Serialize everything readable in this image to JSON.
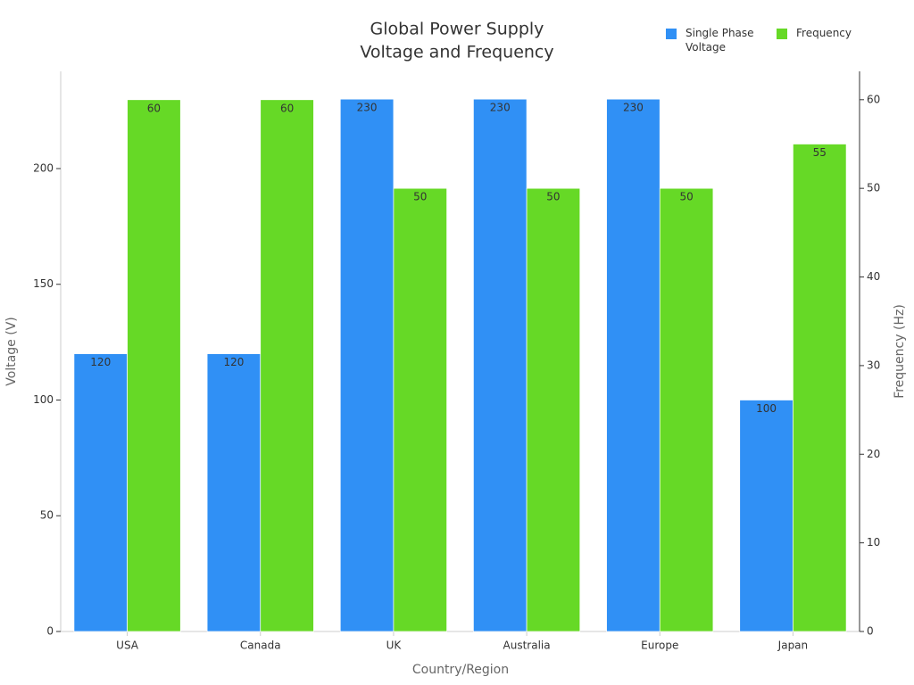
{
  "chart_data": {
    "type": "bar",
    "title": [
      "Global Power Supply",
      "Voltage and Frequency"
    ],
    "x_label": "Country/Region",
    "y_label": "Voltage (V)",
    "y2_label": "Frequency (Hz)",
    "categories": [
      "USA",
      "Canada",
      "UK",
      "Australia",
      "Europe",
      "Japan"
    ],
    "series": [
      {
        "name": "Single Phase Voltage",
        "color": "#3090f5",
        "values": [
          120,
          120,
          230,
          230,
          230,
          100
        ]
      },
      {
        "name": "Frequency",
        "color": "#66d926",
        "axis": "y2",
        "values": [
          60,
          60,
          50,
          50,
          50,
          55
        ]
      }
    ],
    "ylim": [
      0,
      242
    ],
    "yticks": [
      0,
      50,
      100,
      150,
      200
    ],
    "y2lim": [
      0,
      63.2
    ],
    "y2ticks": [
      0,
      10,
      20,
      30,
      40,
      50,
      60
    ],
    "grid": false,
    "legend": "top-right"
  }
}
